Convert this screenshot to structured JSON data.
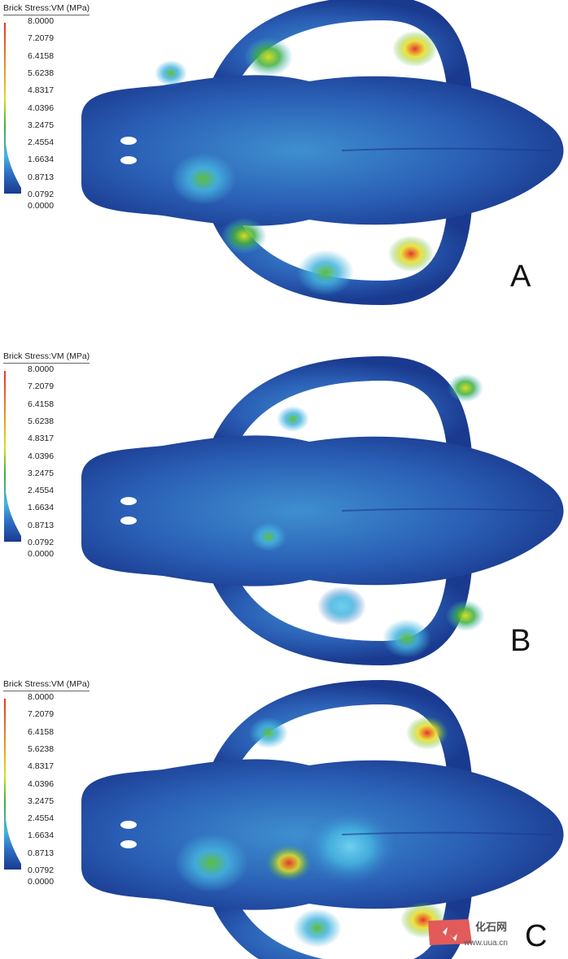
{
  "panels": [
    {
      "id": "A",
      "legend_title": "Brick Stress:VM (MPa)",
      "label": "A"
    },
    {
      "id": "B",
      "legend_title": "Brick Stress:VM (MPa)",
      "label": "B"
    },
    {
      "id": "C",
      "legend_title": "Brick Stress:VM (MPa)",
      "label": "C"
    }
  ],
  "legend_ticks": [
    "8.0000",
    "7.2079",
    "6.4158",
    "5.6238",
    "4.8317",
    "4.0396",
    "3.2475",
    "2.4554",
    "1.6634",
    "0.8713",
    "0.0792",
    "0.0000"
  ],
  "colormap": [
    "#1a3a8f",
    "#2f6fc4",
    "#45b4e0",
    "#3fae3f",
    "#d8e020",
    "#e8342a"
  ],
  "watermark": {
    "text": "化石网",
    "url": "www.uua.cn"
  }
}
